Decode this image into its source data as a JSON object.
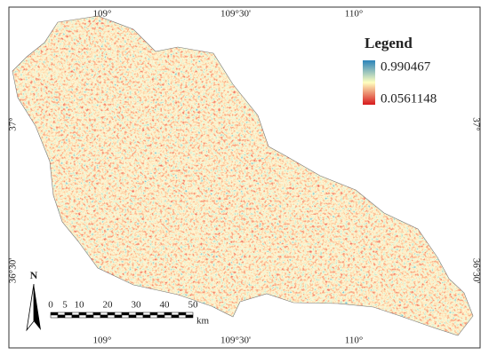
{
  "map": {
    "legend": {
      "title": "Legend",
      "max": 0.990467,
      "min": 0.0561148
    },
    "top_labels": [
      "109°",
      "109°30'",
      "110°"
    ],
    "bottom_labels": [
      "109°",
      "109°30'",
      "110°"
    ],
    "left_labels": [
      "37°",
      "36°30'"
    ],
    "right_labels": [
      "37°",
      "36°30'"
    ],
    "north": "N",
    "scale_bar": {
      "ticks": [
        0,
        5,
        10,
        20,
        30,
        40,
        50
      ],
      "unit": "km"
    }
  }
}
